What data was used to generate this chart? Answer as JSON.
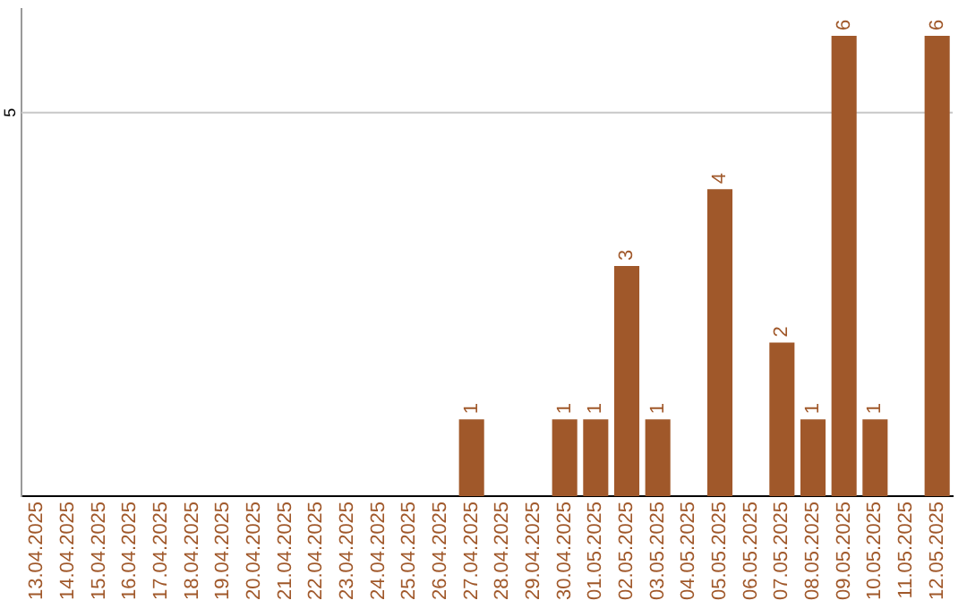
{
  "chart_data": {
    "type": "bar",
    "categories": [
      "13.04.2025",
      "14.04.2025",
      "15.04.2025",
      "16.04.2025",
      "17.04.2025",
      "18.04.2025",
      "19.04.2025",
      "20.04.2025",
      "21.04.2025",
      "22.04.2025",
      "23.04.2025",
      "24.04.2025",
      "25.04.2025",
      "26.04.2025",
      "27.04.2025",
      "28.04.2025",
      "29.04.2025",
      "30.04.2025",
      "01.05.2025",
      "02.05.2025",
      "03.05.2025",
      "04.05.2025",
      "05.05.2025",
      "06.05.2025",
      "07.05.2025",
      "08.05.2025",
      "09.05.2025",
      "10.05.2025",
      "11.05.2025",
      "12.05.2025"
    ],
    "values": [
      null,
      null,
      null,
      null,
      null,
      null,
      null,
      null,
      null,
      null,
      null,
      null,
      null,
      null,
      1,
      null,
      null,
      1,
      1,
      3,
      1,
      null,
      4,
      null,
      2,
      1,
      6,
      1,
      null,
      6
    ],
    "data_labels": true,
    "color": "#a0582a",
    "ylim": [
      0,
      6.35
    ],
    "ref_lines": [
      {
        "axis": "y",
        "value": 5,
        "label": "5",
        "color": "#c8c8c8"
      }
    ]
  }
}
